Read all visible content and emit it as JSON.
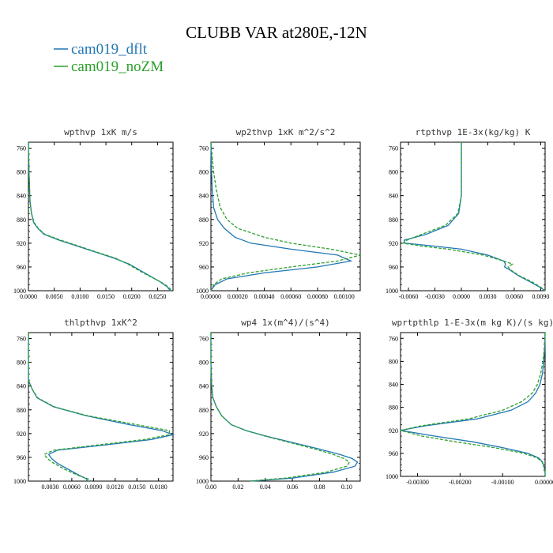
{
  "figure": {
    "title": "CLUBB VAR at280E,-12N",
    "series": [
      {
        "name": "cam019_dflt",
        "color": "#1f77b4",
        "dash": ""
      },
      {
        "name": "cam019_noZM",
        "color": "#2ca02c",
        "dash": "4,2"
      }
    ]
  },
  "chart_data": [
    {
      "type": "line",
      "title": "wpthvp  1xK m/s",
      "xlim": [
        0,
        0.028
      ],
      "ylim": [
        1000,
        750
      ],
      "xticks": [
        0,
        0.005,
        0.01,
        0.015,
        0.02,
        0.025
      ],
      "xtick_labels": [
        "0.0000",
        "0.0050",
        "0.0100",
        "0.0150",
        "0.0200",
        "0.0250"
      ],
      "yticks": [
        760,
        800,
        840,
        880,
        920,
        960,
        1000
      ],
      "ytick_labels": [
        "760",
        "800",
        "840",
        "880",
        "920",
        "960",
        "1000"
      ],
      "series": [
        {
          "name": "cam019_dflt",
          "y": [
            750,
            800,
            850,
            870,
            885,
            895,
            905,
            915,
            925,
            935,
            945,
            955,
            965,
            975,
            985,
            993,
            1000
          ],
          "x": [
            0,
            0.0001,
            0.0003,
            0.0006,
            0.001,
            0.0018,
            0.003,
            0.006,
            0.0095,
            0.013,
            0.0165,
            0.0195,
            0.0215,
            0.0235,
            0.0255,
            0.0268,
            0.0275
          ]
        },
        {
          "name": "cam019_noZM",
          "y": [
            750,
            800,
            850,
            870,
            885,
            895,
            905,
            915,
            925,
            935,
            945,
            955,
            965,
            975,
            985,
            993,
            1000
          ],
          "x": [
            0,
            0.0001,
            0.0003,
            0.0006,
            0.0011,
            0.0019,
            0.0032,
            0.0063,
            0.0098,
            0.0132,
            0.0168,
            0.0192,
            0.0212,
            0.0233,
            0.0256,
            0.027,
            0.0278
          ]
        }
      ]
    },
    {
      "type": "line",
      "title": "wp2thvp  1xK m^2/s^2",
      "xlim": [
        0,
        0.00112
      ],
      "ylim": [
        1000,
        750
      ],
      "xticks": [
        0,
        0.0002,
        0.0004,
        0.0006,
        0.0008,
        0.001
      ],
      "xtick_labels": [
        "0.00000",
        "0.00020",
        "0.00040",
        "0.00060",
        "0.00080",
        "0.00100"
      ],
      "yticks": [
        760,
        800,
        840,
        880,
        920,
        960,
        1000
      ],
      "ytick_labels": [
        "760",
        "800",
        "840",
        "880",
        "920",
        "960",
        "1000"
      ],
      "series": [
        {
          "name": "cam019_dflt",
          "y": [
            750,
            800,
            830,
            860,
            880,
            895,
            910,
            920,
            930,
            940,
            950,
            960,
            970,
            980,
            990,
            1000
          ],
          "x": [
            0,
            5e-06,
            1e-05,
            2e-05,
            5e-05,
            0.0001,
            0.00018,
            0.0003,
            0.0006,
            0.00095,
            0.00105,
            0.0008,
            0.0004,
            0.00012,
            3e-05,
            0
          ]
        },
        {
          "name": "cam019_noZM",
          "y": [
            750,
            800,
            830,
            860,
            880,
            895,
            910,
            920,
            930,
            940,
            950,
            960,
            970,
            980,
            990,
            1000
          ],
          "x": [
            0,
            2e-05,
            4e-05,
            7e-05,
            0.00012,
            0.0002,
            0.0004,
            0.0006,
            0.0009,
            0.00112,
            0.00095,
            0.0006,
            0.00028,
            8e-05,
            2e-05,
            0
          ]
        }
      ]
    },
    {
      "type": "line",
      "title": "rtpthvp  1E-3x(kg/kg) K",
      "xlim": [
        -0.0069,
        0.0095
      ],
      "ylim": [
        1000,
        750
      ],
      "xticks": [
        -0.006,
        -0.003,
        0,
        0.003,
        0.006,
        0.009
      ],
      "xtick_labels": [
        "-0.0060",
        "-0.0030",
        "0.0000",
        "0.0030",
        "0.0060",
        "0.0090"
      ],
      "yticks": [
        760,
        800,
        840,
        880,
        920,
        960,
        1000
      ],
      "ytick_labels": [
        "760",
        "800",
        "840",
        "880",
        "920",
        "960",
        "1000"
      ],
      "series": [
        {
          "name": "cam019_dflt",
          "y": [
            750,
            800,
            840,
            870,
            890,
            905,
            915,
            920,
            925,
            930,
            940,
            950,
            955,
            960,
            965,
            975,
            985,
            995,
            1000
          ],
          "x": [
            0,
            0,
            0,
            -0.0003,
            -0.0015,
            -0.004,
            -0.0065,
            -0.0064,
            -0.003,
            0,
            0.003,
            0.0048,
            0.005,
            0.0049,
            0.0055,
            0.0065,
            0.0078,
            0.009,
            0.0095
          ]
        },
        {
          "name": "cam019_noZM",
          "y": [
            750,
            800,
            840,
            870,
            890,
            905,
            915,
            920,
            925,
            930,
            940,
            950,
            955,
            960,
            965,
            975,
            985,
            995,
            1000
          ],
          "x": [
            0,
            0,
            0,
            -0.0004,
            -0.0018,
            -0.0045,
            -0.0062,
            -0.0066,
            -0.0045,
            -0.0015,
            0.0025,
            0.0048,
            0.0058,
            0.0053,
            0.0056,
            0.0066,
            0.008,
            0.0091,
            0.0095
          ]
        }
      ]
    },
    {
      "type": "line",
      "title": "thlpthvp  1xK^2",
      "xlim": [
        0,
        0.02
      ],
      "ylim": [
        1000,
        750
      ],
      "xticks": [
        0.003,
        0.006,
        0.009,
        0.012,
        0.015,
        0.018
      ],
      "xtick_labels": [
        "0.0030",
        "0.0060",
        "0.0090",
        "0.0120",
        "0.0150",
        "0.0180"
      ],
      "yticks": [
        760,
        800,
        840,
        880,
        920,
        960,
        1000
      ],
      "ytick_labels": [
        "760",
        "800",
        "840",
        "880",
        "920",
        "960",
        "1000"
      ],
      "series": [
        {
          "name": "cam019_dflt",
          "y": [
            750,
            800,
            830,
            845,
            860,
            875,
            890,
            905,
            915,
            922,
            930,
            940,
            948,
            955,
            962,
            970,
            980,
            990,
            996,
            1000
          ],
          "x": [
            0,
            0,
            0,
            0.0005,
            0.0012,
            0.0035,
            0.008,
            0.014,
            0.0185,
            0.02,
            0.017,
            0.01,
            0.004,
            0.0028,
            0.0032,
            0.004,
            0.0055,
            0.007,
            0.008,
            0.0082
          ]
        },
        {
          "name": "cam019_noZM",
          "y": [
            750,
            800,
            830,
            845,
            860,
            875,
            890,
            905,
            915,
            922,
            930,
            940,
            948,
            955,
            962,
            970,
            980,
            990,
            996,
            1000
          ],
          "x": [
            0,
            0,
            0,
            0.0005,
            0.0013,
            0.0036,
            0.0082,
            0.015,
            0.0195,
            0.0195,
            0.016,
            0.009,
            0.0035,
            0.0022,
            0.0026,
            0.0035,
            0.005,
            0.0068,
            0.0082,
            0.0087
          ]
        }
      ]
    },
    {
      "type": "line",
      "title": "wp4  1x(m^4)/(s^4)",
      "xlim": [
        0,
        0.11
      ],
      "ylim": [
        1000,
        750
      ],
      "xticks": [
        0,
        0.02,
        0.04,
        0.06,
        0.08,
        0.1
      ],
      "xtick_labels": [
        "0.00",
        "0.02",
        "0.04",
        "0.06",
        "0.08",
        "0.10"
      ],
      "yticks": [
        760,
        800,
        840,
        880,
        920,
        960,
        1000
      ],
      "ytick_labels": [
        "760",
        "800",
        "840",
        "880",
        "920",
        "960",
        "1000"
      ],
      "series": [
        {
          "name": "cam019_dflt",
          "y": [
            750,
            800,
            840,
            860,
            875,
            890,
            905,
            915,
            925,
            935,
            945,
            955,
            962,
            968,
            975,
            985,
            995,
            1000
          ],
          "x": [
            0,
            0,
            0.0005,
            0.0015,
            0.004,
            0.008,
            0.015,
            0.026,
            0.042,
            0.06,
            0.078,
            0.095,
            0.104,
            0.108,
            0.106,
            0.09,
            0.06,
            0.03
          ]
        },
        {
          "name": "cam019_noZM",
          "y": [
            750,
            800,
            840,
            860,
            875,
            890,
            905,
            915,
            925,
            935,
            945,
            955,
            962,
            968,
            975,
            985,
            995,
            1000
          ],
          "x": [
            0,
            0,
            0.0005,
            0.0015,
            0.004,
            0.008,
            0.015,
            0.026,
            0.041,
            0.058,
            0.075,
            0.09,
            0.098,
            0.102,
            0.1,
            0.085,
            0.055,
            0.028
          ]
        }
      ]
    },
    {
      "type": "line",
      "title": "wprtpthlp  1-E-3x(m kg K)/(s kg)",
      "xlim": [
        -0.0034,
        0
      ],
      "ylim": [
        1000,
        750
      ],
      "xticks": [
        -0.003,
        -0.002,
        -0.001,
        0
      ],
      "xtick_labels": [
        "-0.00300",
        "-0.00200",
        "-0.00100",
        "0.00000"
      ],
      "yticks": [
        760,
        800,
        840,
        880,
        920,
        960,
        1000
      ],
      "ytick_labels": [
        "760",
        "800",
        "840",
        "880",
        "920",
        "960",
        "1000"
      ],
      "series": [
        {
          "name": "cam019_dflt",
          "y": [
            750,
            780,
            800,
            820,
            840,
            855,
            870,
            885,
            900,
            912,
            920,
            930,
            940,
            950,
            960,
            968,
            975,
            985,
            995,
            1000
          ],
          "x": [
            0,
            -1e-05,
            -3e-05,
            -6e-05,
            -0.00012,
            -0.00022,
            -0.0004,
            -0.0008,
            -0.0016,
            -0.0028,
            -0.0034,
            -0.0026,
            -0.0017,
            -0.001,
            -0.0004,
            -0.00015,
            -6e-05,
            -2e-05,
            0,
            0
          ]
        },
        {
          "name": "cam019_noZM",
          "y": [
            750,
            780,
            800,
            820,
            840,
            855,
            870,
            885,
            900,
            912,
            920,
            930,
            940,
            950,
            960,
            968,
            975,
            985,
            995,
            1000
          ],
          "x": [
            0,
            -2e-05,
            -5e-05,
            -0.0001,
            -0.00018,
            -0.0003,
            -0.00055,
            -0.001,
            -0.0018,
            -0.0029,
            -0.0034,
            -0.0029,
            -0.0021,
            -0.0012,
            -0.0005,
            -0.00018,
            -7e-05,
            -2e-05,
            0,
            0
          ]
        }
      ]
    }
  ]
}
